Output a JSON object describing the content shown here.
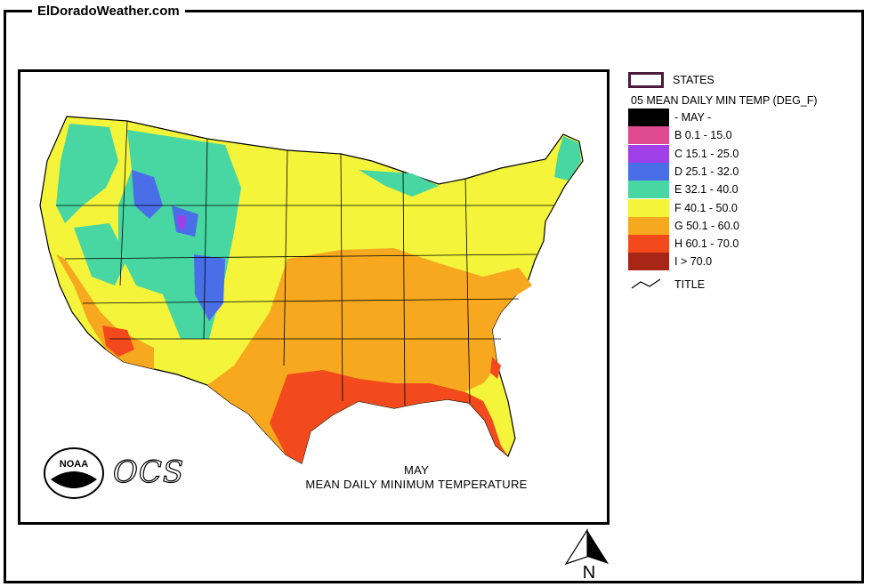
{
  "site_title": "ElDoradoWeather.com",
  "map": {
    "caption_month": "MAY",
    "caption_title": "MEAN DAILY MINIMUM TEMPERATURE",
    "logo_noaa": "NOAA",
    "logo_ocs": "OCS"
  },
  "legend": {
    "states_label": "STATES",
    "title": "05 MEAN DAILY MIN TEMP (DEG_F)",
    "classes": [
      {
        "label": "- MAY -",
        "color": "#000000"
      },
      {
        "label": "B 0.1 - 15.0",
        "color": "#e04a8f"
      },
      {
        "label": "C 15.1 - 25.0",
        "color": "#a040e8"
      },
      {
        "label": "D 25.1 - 32.0",
        "color": "#4a6ee8"
      },
      {
        "label": "E 32.1 - 40.0",
        "color": "#48d6a2"
      },
      {
        "label": "F 40.1 - 50.0",
        "color": "#f4f43a"
      },
      {
        "label": "G 50.1 - 60.0",
        "color": "#f7a81e"
      },
      {
        "label": "H 60.1 - 70.0",
        "color": "#f24a1c"
      },
      {
        "label": "I > 70.0",
        "color": "#a82616"
      }
    ],
    "title_line_label": "TITLE"
  },
  "north_label": "N"
}
